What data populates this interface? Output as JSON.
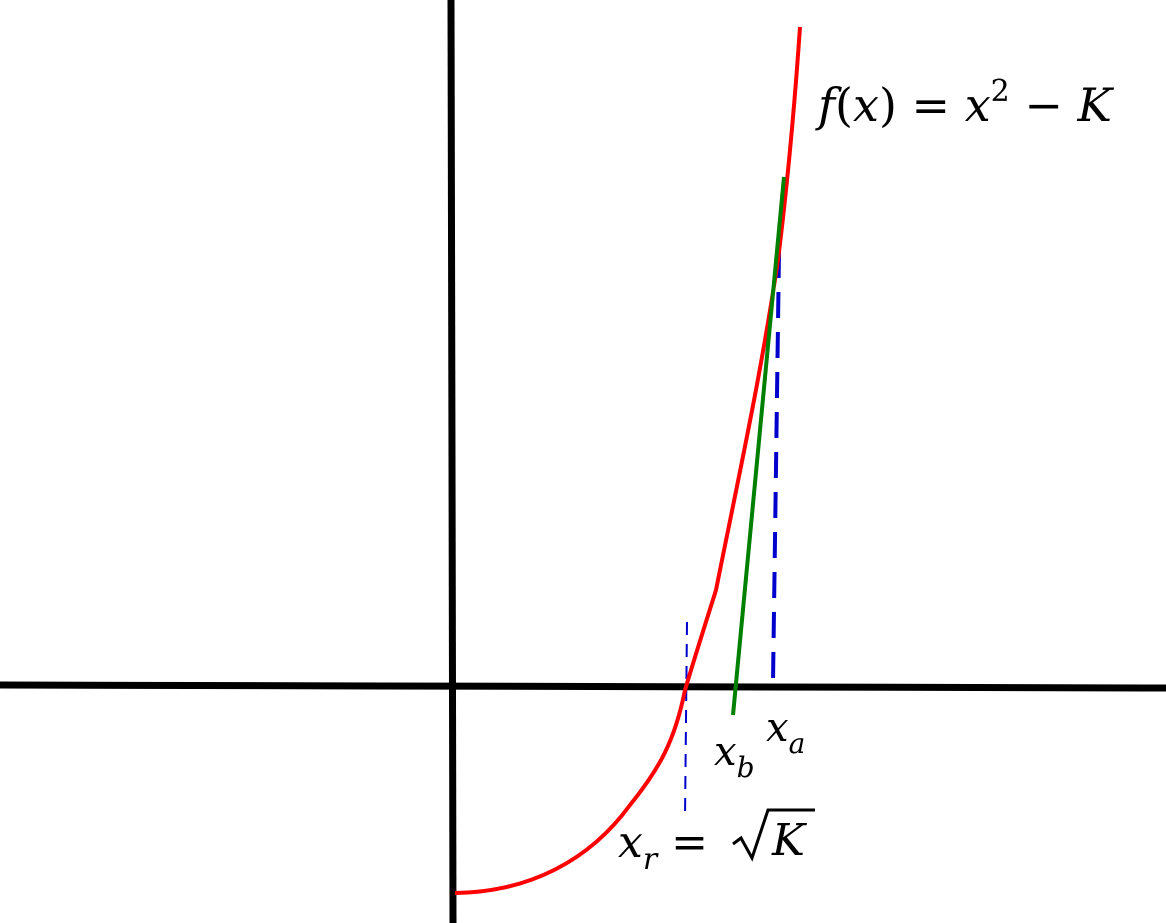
{
  "labels": {
    "function": {
      "f": "f",
      "open": "(",
      "x": "x",
      "close": ")",
      "eq": " = ",
      "x2": "x",
      "pow": "2",
      "minus": " − ",
      "K": "K"
    },
    "x_a": {
      "base": "x",
      "sub": "a"
    },
    "x_b": {
      "base": "x",
      "sub": "b"
    },
    "x_r": {
      "base": "x",
      "sub": "r",
      "eq": " = ",
      "K": "K"
    }
  },
  "colors": {
    "axes": "#000000",
    "curve": "#ff0000",
    "tangent": "#008000",
    "guides": "#0000cc"
  }
}
